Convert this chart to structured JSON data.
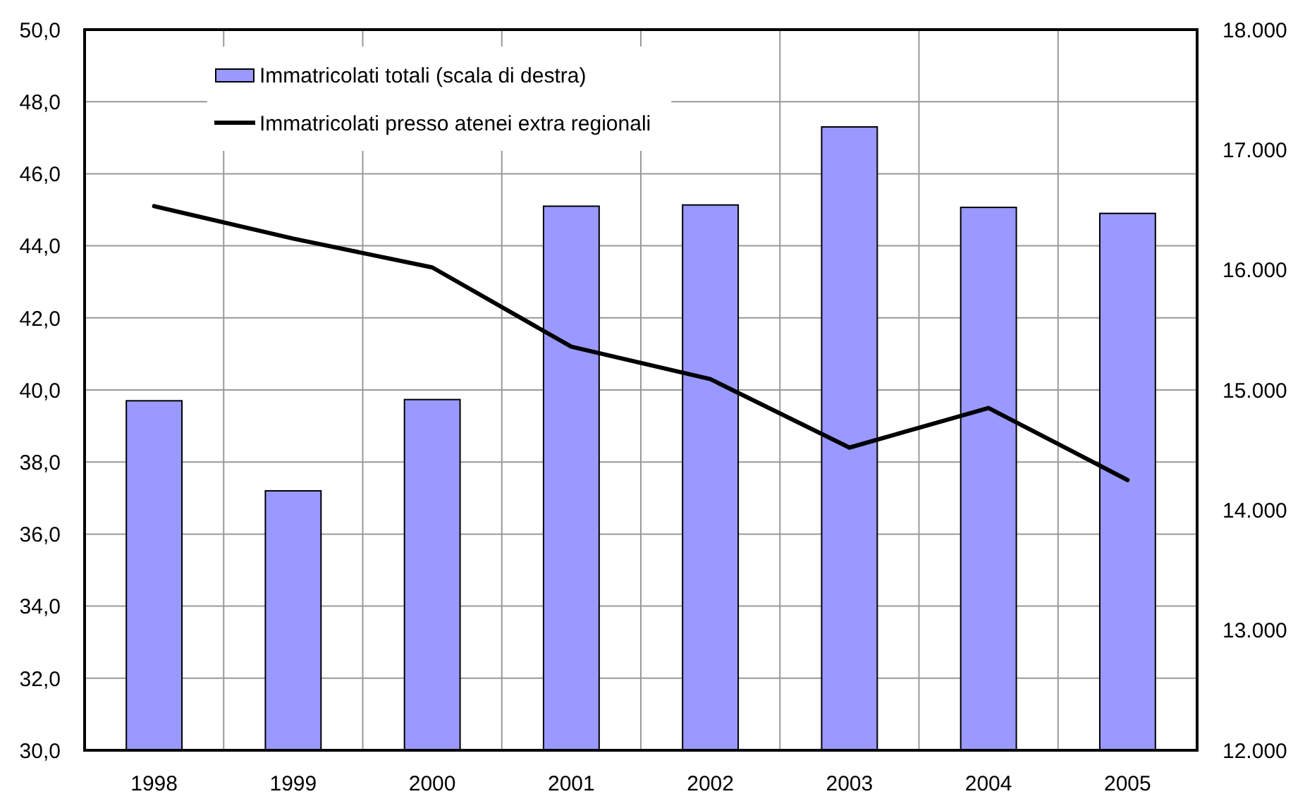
{
  "chart_data": {
    "type": "bar",
    "categories": [
      "1998",
      "1999",
      "2000",
      "2001",
      "2002",
      "2003",
      "2004",
      "2005"
    ],
    "series": [
      {
        "name": "Immatricolati totali (scala di destra)",
        "axis": "y2",
        "color": "#9999ff",
        "values": [
          14910,
          14160,
          14920,
          16530,
          16540,
          17190,
          16520,
          16470
        ]
      },
      {
        "name": "Immatricolati presso atenei extra regionali",
        "type": "line",
        "color": "#000000",
        "values": [
          45.1,
          44.2,
          43.4,
          41.2,
          40.3,
          38.4,
          39.5,
          37.5
        ]
      }
    ],
    "ylim": [
      30,
      50
    ],
    "yticks": [
      {
        "value": 30,
        "label": "30,0"
      },
      {
        "value": 32,
        "label": "32,0"
      },
      {
        "value": 34,
        "label": "34,0"
      },
      {
        "value": 36,
        "label": "36,0"
      },
      {
        "value": 38,
        "label": "38,0"
      },
      {
        "value": 40,
        "label": "40,0"
      },
      {
        "value": 42,
        "label": "42,0"
      },
      {
        "value": 44,
        "label": "44,0"
      },
      {
        "value": 46,
        "label": "46,0"
      },
      {
        "value": 48,
        "label": "48,0"
      },
      {
        "value": 50,
        "label": "50,0"
      }
    ],
    "y2lim": [
      12000,
      18000
    ],
    "y2ticks": [
      {
        "value": 12000,
        "label": "12.000"
      },
      {
        "value": 13000,
        "label": "13.000"
      },
      {
        "value": 14000,
        "label": "14.000"
      },
      {
        "value": 15000,
        "label": "15.000"
      },
      {
        "value": 16000,
        "label": "16.000"
      },
      {
        "value": 17000,
        "label": "17.000"
      },
      {
        "value": 18000,
        "label": "18.000"
      }
    ],
    "grid": true,
    "legend": "top left"
  }
}
